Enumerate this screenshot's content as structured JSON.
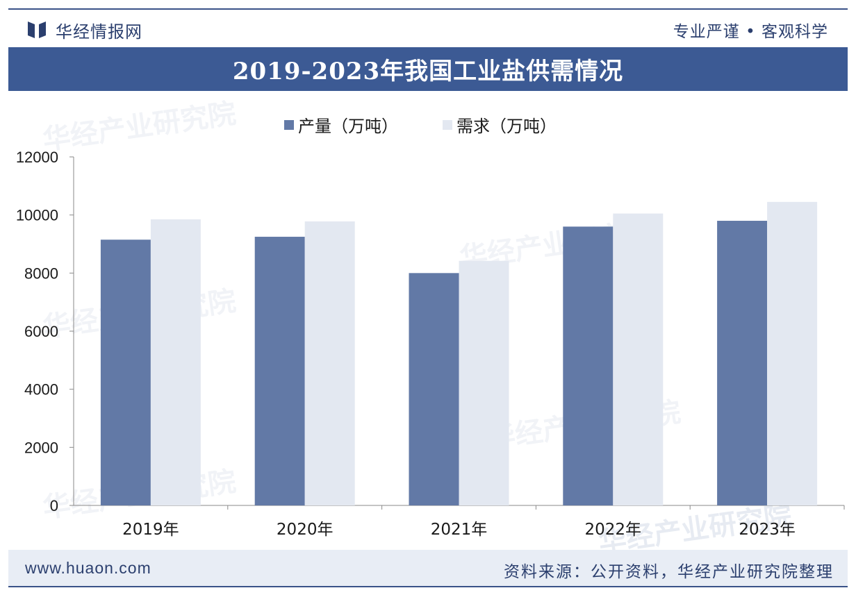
{
  "header": {
    "brand_name": "华经情报网",
    "slogan": "专业严谨 • 客观科学"
  },
  "footer": {
    "url": "www.huaon.com",
    "source": "资料来源：公开资料，华经产业研究院整理"
  },
  "watermark": {
    "text": "华经产业研究院",
    "url": "www.huaon.com"
  },
  "colors": {
    "accent": "#3c5a94",
    "series_production": "#6279a6",
    "series_demand": "#e3e8f1",
    "text": "#1a1a1a"
  },
  "chart_data": {
    "type": "bar",
    "title": "2019-2023年我国工业盐供需情况",
    "categories": [
      "2019年",
      "2020年",
      "2021年",
      "2022年",
      "2023年"
    ],
    "series": [
      {
        "name": "产量（万吨）",
        "values": [
          9150,
          9250,
          8000,
          9600,
          9800
        ]
      },
      {
        "name": "需求（万吨）",
        "values": [
          9850,
          9780,
          8420,
          10050,
          10450
        ]
      }
    ],
    "yticks": [
      "0",
      "2000",
      "4000",
      "6000",
      "8000",
      "10000",
      "12000"
    ],
    "ylim": [
      0,
      12000
    ],
    "xlabel": "",
    "ylabel": "",
    "legend": "top-left",
    "grid": false
  }
}
